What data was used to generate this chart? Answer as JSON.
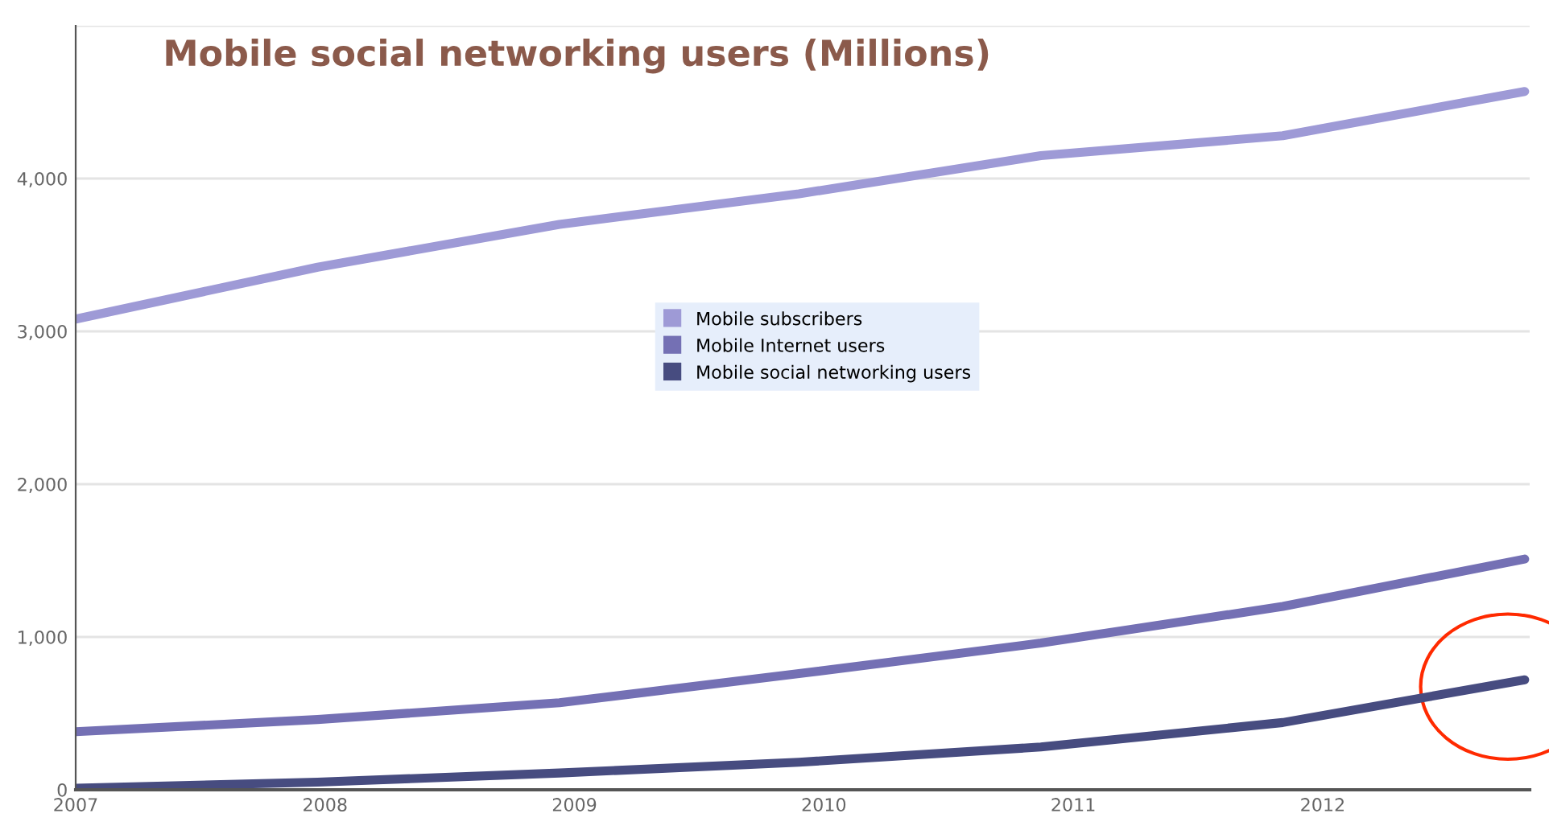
{
  "chart_data": {
    "type": "line",
    "title": "Mobile social networking users (Millions)",
    "x": [
      2007,
      2007.97,
      2008.94,
      2009.9,
      2010.87,
      2011.84,
      2012.81
    ],
    "series": [
      {
        "name": "Mobile subscribers",
        "color": "#9e9ad6",
        "values": [
          3080,
          3420,
          3700,
          3900,
          4150,
          4280,
          4570
        ]
      },
      {
        "name": "Mobile Internet users",
        "color": "#7470b4",
        "values": [
          380,
          460,
          570,
          760,
          960,
          1200,
          1510
        ]
      },
      {
        "name": "Mobile social networking users",
        "color": "#474c80",
        "values": [
          10,
          50,
          110,
          180,
          280,
          440,
          720
        ]
      }
    ],
    "xlim": [
      2007,
      2012.83
    ],
    "xticks": [
      2007,
      2008,
      2009,
      2010,
      2011,
      2012
    ],
    "ylim": [
      0,
      5000
    ],
    "yticks": [
      {
        "value": 0,
        "label": "0"
      },
      {
        "value": 1000,
        "label": "1,000"
      },
      {
        "value": 2000,
        "label": "2,000"
      },
      {
        "value": 3000,
        "label": "3,000"
      },
      {
        "value": 4000,
        "label": "4,000"
      },
      {
        "value": 5000,
        "label": null
      }
    ],
    "grid": "y",
    "legend": "center",
    "marker": "none",
    "line_style": "solid"
  }
}
